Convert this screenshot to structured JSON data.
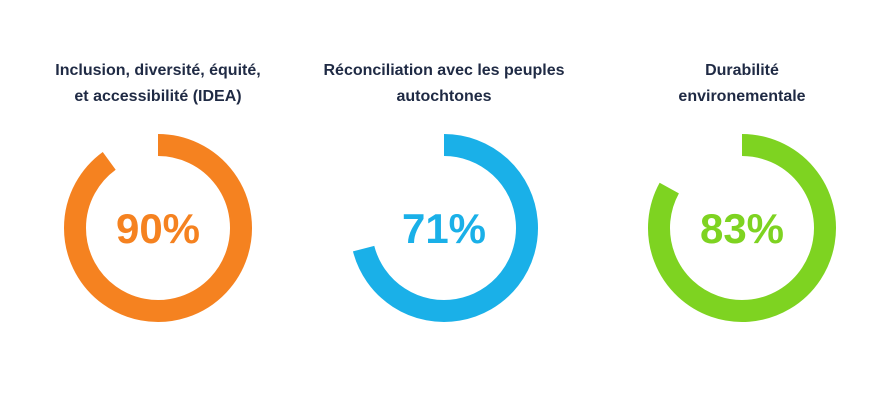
{
  "chart_data": {
    "type": "pie",
    "charts": [
      {
        "title_lines": [
          "Inclusion, diversité, équité,",
          "et accessibilité (IDEA)"
        ],
        "value": 90,
        "label": "90%",
        "color": "#f58220"
      },
      {
        "title_lines": [
          "Réconciliation avec les peuples",
          "autochtones"
        ],
        "value": 71,
        "label": "71%",
        "color": "#1ab0e8"
      },
      {
        "title_lines": [
          "Durabilité",
          "environementale"
        ],
        "value": 83,
        "label": "83%",
        "color": "#7ed321"
      }
    ]
  }
}
